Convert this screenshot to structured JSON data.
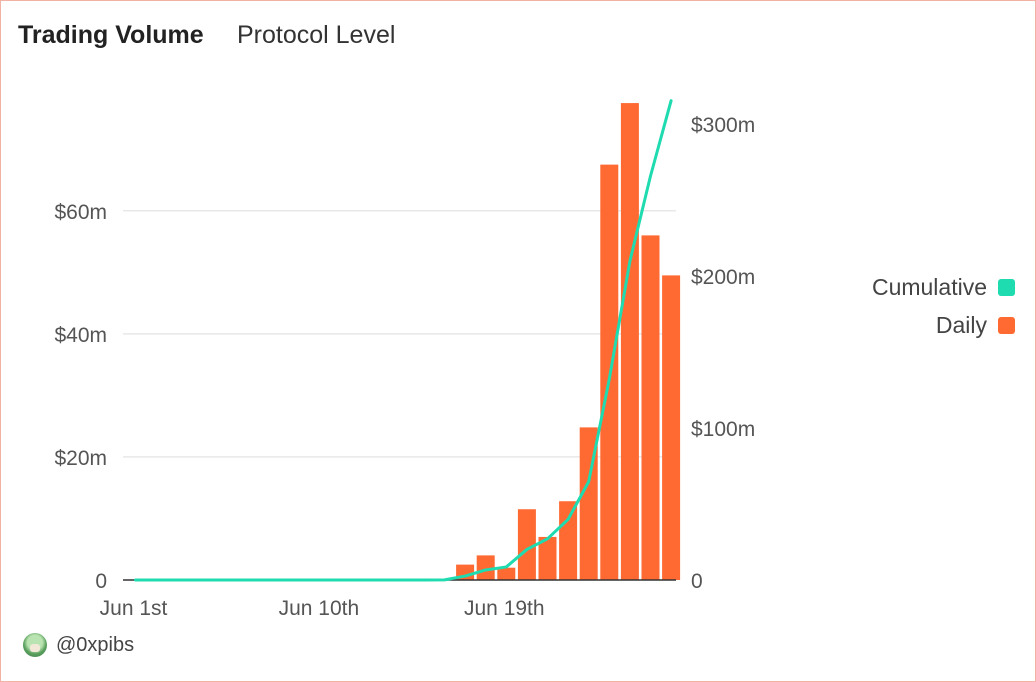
{
  "header": {
    "title": "Trading Volume",
    "subtitle": "Protocol Level"
  },
  "footer": {
    "handle": "@0xpibs",
    "avatar_icon": "avatar-icon"
  },
  "colors": {
    "cumulative": "#1fdbb0",
    "daily": "#ff6a33",
    "grid": "#e8e8e8"
  },
  "chart_data": {
    "type": "bar",
    "x_tick_labels": [
      "Jun 1st",
      "Jun 10th",
      "Jun 19th"
    ],
    "y_left": {
      "ticks": [
        0,
        20,
        40,
        60
      ],
      "tick_labels": [
        "0",
        "$20m",
        "$40m",
        "$60m"
      ],
      "ylim": [
        0,
        78
      ]
    },
    "y_right": {
      "ticks": [
        0,
        100,
        200,
        300
      ],
      "tick_labels": [
        "0",
        "$100m",
        "$200m",
        "$300m"
      ],
      "ylim": [
        0,
        315
      ]
    },
    "legend": {
      "position": "right",
      "entries": [
        "Cumulative",
        "Daily"
      ]
    },
    "grid": true,
    "days": [
      "Jun 1",
      "Jun 2",
      "Jun 3",
      "Jun 4",
      "Jun 5",
      "Jun 6",
      "Jun 7",
      "Jun 8",
      "Jun 9",
      "Jun 10",
      "Jun 11",
      "Jun 12",
      "Jun 13",
      "Jun 14",
      "Jun 15",
      "Jun 16",
      "Jun 17",
      "Jun 18",
      "Jun 19",
      "Jun 20",
      "Jun 21",
      "Jun 22",
      "Jun 23",
      "Jun 24",
      "Jun 25",
      "Jun 26",
      "Jun 27"
    ],
    "series": [
      {
        "name": "Daily",
        "type": "bar",
        "axis": "left",
        "values": [
          0,
          0,
          0,
          0,
          0,
          0,
          0,
          0,
          0,
          0,
          0,
          0,
          0,
          0,
          0,
          0.1,
          2.5,
          4,
          2,
          11.5,
          7,
          12.8,
          24.8,
          67.5,
          77.5,
          56,
          49.5
        ]
      },
      {
        "name": "Cumulative",
        "type": "line",
        "axis": "right",
        "values": [
          0,
          0,
          0,
          0,
          0,
          0,
          0,
          0,
          0,
          0,
          0,
          0,
          0,
          0,
          0,
          0.1,
          2.6,
          6.6,
          8.6,
          20.1,
          27.1,
          39.9,
          64.7,
          132.2,
          209.7,
          265.7,
          315.2
        ]
      }
    ]
  }
}
